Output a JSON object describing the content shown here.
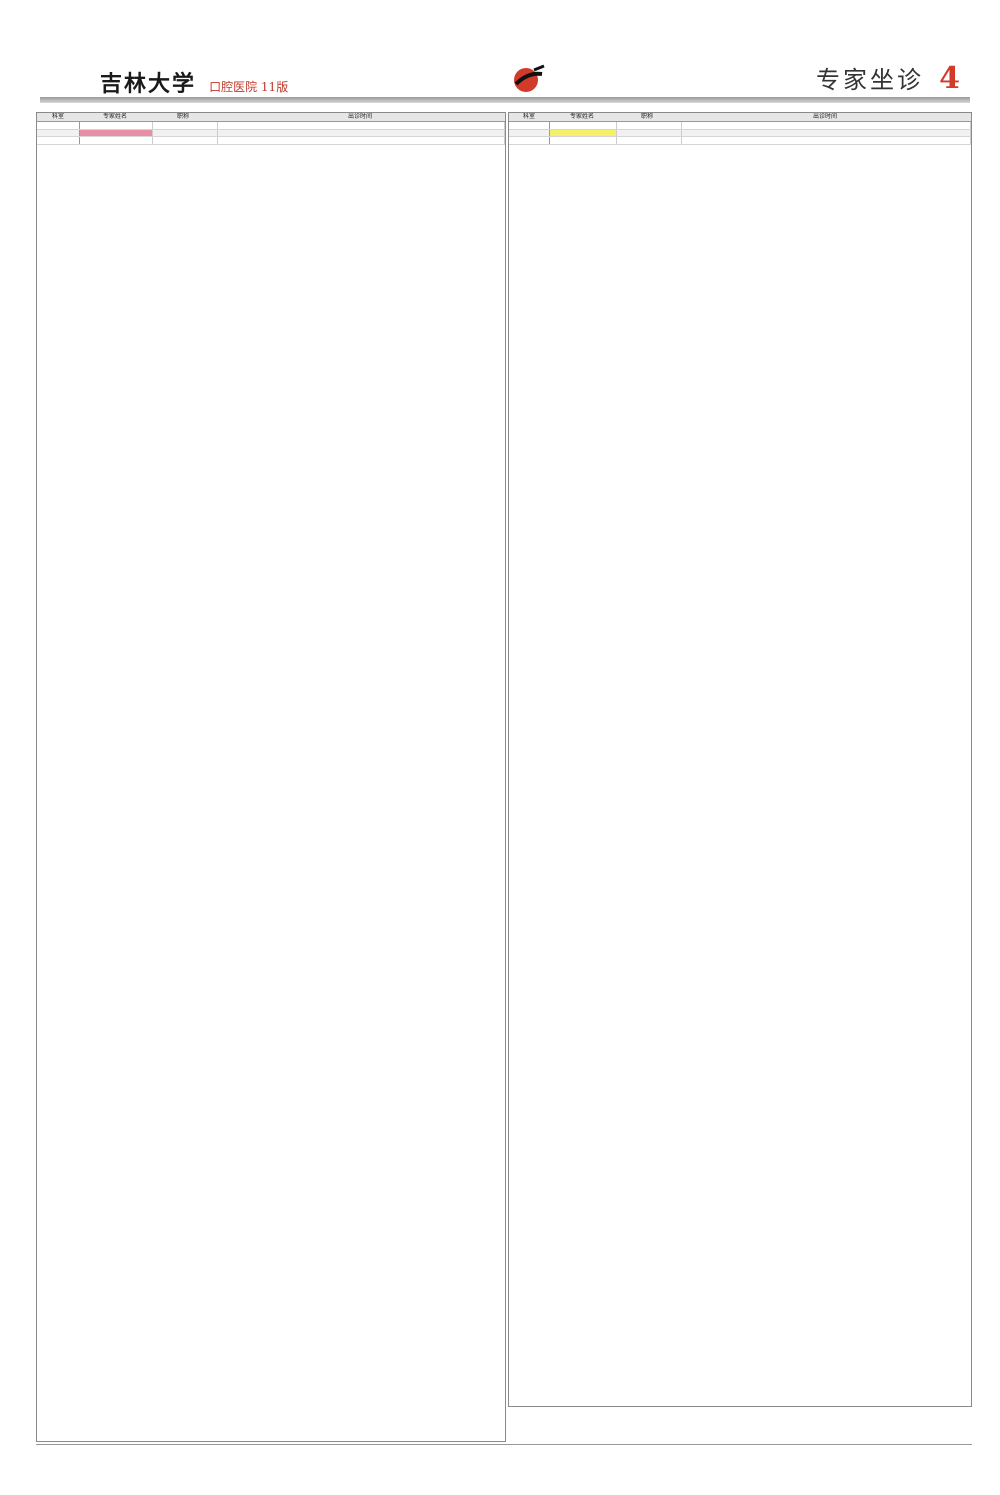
{
  "masthead": {
    "paper_name": "吉林大学",
    "edition_info": "口腔医院  11版",
    "section_title": "专家坐诊",
    "page_number": "4"
  },
  "left_table": {
    "headers": [
      "科室",
      "专家姓名",
      "职称",
      "出诊时间"
    ],
    "first_rows": [
      {
        "dept": "",
        "doctor": "",
        "title": "",
        "time": "",
        "style": "plain"
      },
      {
        "dept": "",
        "doctor": "",
        "title": "",
        "time": "",
        "style": "pink"
      },
      {
        "dept": "",
        "doctor": "",
        "title": "",
        "time": "",
        "style": "plain"
      }
    ]
  },
  "right_table": {
    "headers": [
      "科室",
      "专家姓名",
      "职称",
      "出诊时间"
    ],
    "first_rows": [
      {
        "dept": "",
        "doctor": "",
        "title": "",
        "time": "",
        "style": "plain"
      },
      {
        "dept": "",
        "doctor": "",
        "title": "",
        "time": "",
        "style": "yellow"
      },
      {
        "dept": "",
        "doctor": "",
        "title": "",
        "time": "",
        "style": "plain"
      }
    ]
  },
  "footer": {
    "line1": "",
    "line2": "",
    "line3": ""
  },
  "colors": {
    "highlight_pink": "#e88fa6",
    "highlight_yellow": "#f4f06a",
    "highlight_green": "#2f9a3a",
    "accent_red": "#d23a2a"
  }
}
